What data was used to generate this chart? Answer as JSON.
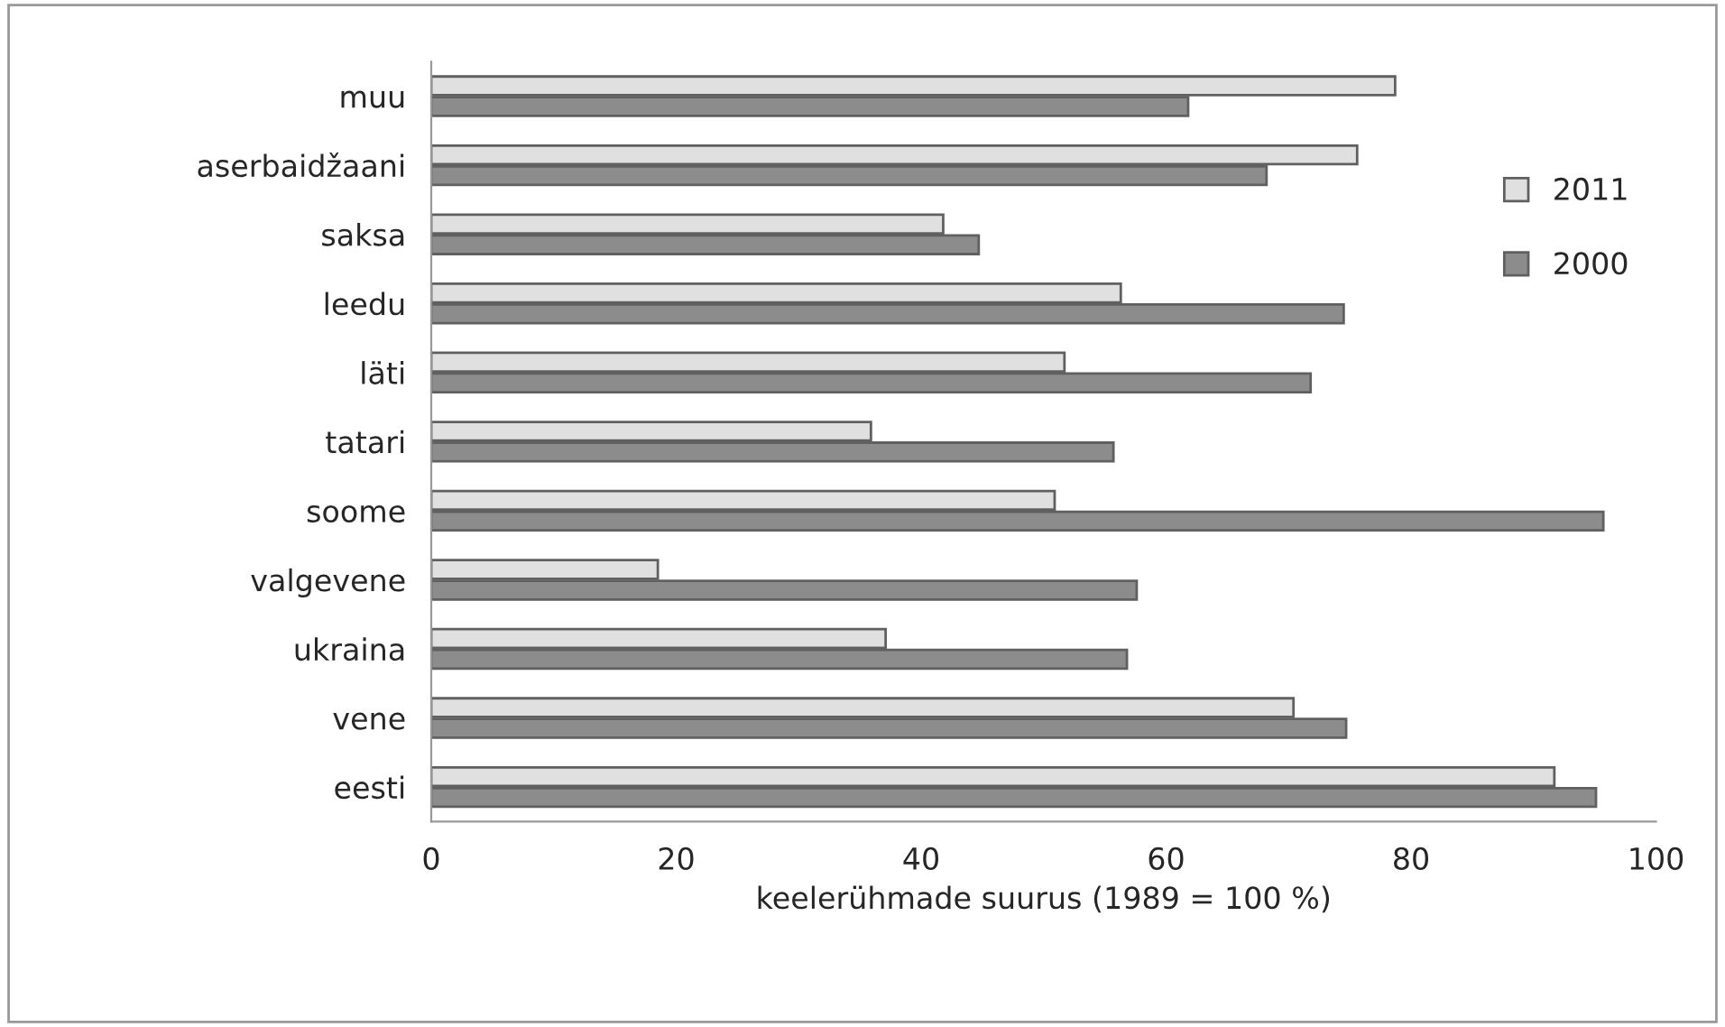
{
  "chart_data": {
    "type": "bar",
    "orientation": "horizontal",
    "xlabel": "keelerühmade suurus (1989 = 100 %)",
    "categories": [
      "muu",
      "aserbaidžaani",
      "saksa",
      "leedu",
      "läti",
      "tatari",
      "soome",
      "valgevene",
      "ukraina",
      "vene",
      "eesti"
    ],
    "series": [
      {
        "name": "2011",
        "color": "#e0e0e0",
        "values": [
          78.7,
          75.6,
          41.8,
          56.3,
          51.7,
          35.9,
          50.9,
          18.5,
          37.1,
          70.4,
          91.7
        ]
      },
      {
        "name": "2000",
        "color": "#8c8c8c",
        "values": [
          61.8,
          68.2,
          44.7,
          74.5,
          71.8,
          55.7,
          95.7,
          57.6,
          56.8,
          74.7,
          95.1
        ]
      }
    ],
    "xlim": [
      0,
      100
    ],
    "xticks": [
      0,
      20,
      40,
      60,
      80,
      100
    ],
    "grid": false,
    "legend": "right"
  }
}
